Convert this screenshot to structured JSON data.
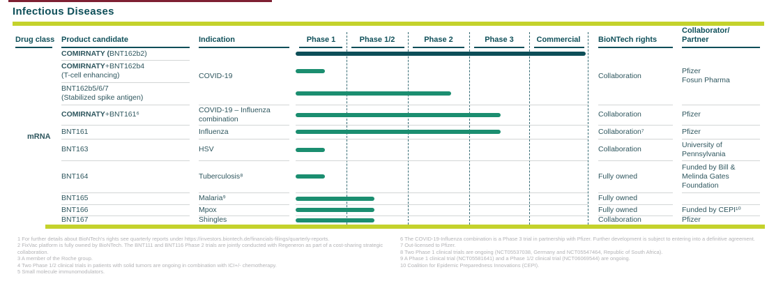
{
  "title": "Infectious Diseases",
  "accent_colors": {
    "petrol": "#0d4e58",
    "green": "#1b8e70",
    "lime": "#c4d22c",
    "footnote_gray": "#b3b3b6"
  },
  "pipeline": {
    "drug_class": "mRNA",
    "columns": [
      "Drug class",
      "Product candidate",
      "Indication",
      "Phase 1",
      "Phase 1/2",
      "Phase 2",
      "Phase 3",
      "Commercial",
      "BioNTech rights",
      "Collaborator/\nPartner"
    ],
    "covid_group": {
      "indication": "COVID-19",
      "rights": "Collaboration",
      "partner": "Pfizer\nFosun Pharma"
    },
    "rows": [
      {
        "product": [
          [
            [
              "COMIRNATY (",
              1
            ],
            [
              "BNT162b2)",
              0
            ]
          ]
        ],
        "indication": "",
        "rights": "",
        "partner": ""
      },
      {
        "product": [
          [
            [
              "COMIRNATY",
              1
            ],
            [
              "+BNT162b4",
              0
            ]
          ],
          [
            [
              "(T-cell enhancing)",
              0
            ]
          ]
        ],
        "indication": "",
        "rights": "",
        "partner": ""
      },
      {
        "product": [
          [
            [
              "BNT162b5/6/7",
              0
            ]
          ],
          [
            [
              "(Stabilized spike antigen)",
              0
            ]
          ]
        ],
        "indication": "",
        "rights": "",
        "partner": ""
      },
      {
        "product": [
          [
            [
              "COMIRNATY",
              1
            ],
            [
              "+BNT161⁶",
              0
            ]
          ]
        ],
        "indication": "COVID-19 – Influenza\ncombination",
        "rights": "Collaboration",
        "partner": "Pfizer"
      },
      {
        "product": [
          [
            [
              "BNT161",
              0
            ]
          ]
        ],
        "indication": "Influenza",
        "rights": "Collaboration⁷",
        "partner": "Pfizer"
      },
      {
        "product": [
          [
            [
              "BNT163",
              0
            ]
          ]
        ],
        "indication": "HSV",
        "rights": "Collaboration",
        "partner": "University of\nPennsylvania"
      },
      {
        "product": [
          [
            [
              "BNT164",
              0
            ]
          ]
        ],
        "indication": "Tuberculosis⁸",
        "rights": "Fully owned",
        "partner": "Funded by Bill &\nMelinda Gates\nFoundation"
      },
      {
        "product": [
          [
            [
              "BNT165",
              0
            ]
          ]
        ],
        "indication": "Malaria⁹",
        "rights": "Fully owned",
        "partner": ""
      },
      {
        "product": [
          [
            [
              "BNT166",
              0
            ]
          ]
        ],
        "indication": "Mpox",
        "rights": "Fully owned",
        "partner": "Funded by CEPI¹⁰"
      },
      {
        "product": [
          [
            [
              "BNT167",
              0
            ]
          ]
        ],
        "indication": "Shingles",
        "rights": "Collaboration",
        "partner": "Pfizer"
      }
    ]
  },
  "chart_data": {
    "type": "gantt",
    "title": "Infectious Diseases",
    "phase_scale": [
      "Phase 1",
      "Phase 1/2",
      "Phase 2",
      "Phase 3",
      "Commercial"
    ],
    "progress_units_note": "end_units: 0=start Phase 1, 1=end Phase 1, 2=end Phase 1/2, 3=end Phase 2, 4=end Phase 3, 5=end Commercial",
    "bars": [
      {
        "candidate": "COMIRNATY (BNT162b2)",
        "indication": "COVID-19",
        "end_units": 4.96,
        "color": "#0d4e58"
      },
      {
        "candidate": "COMIRNATY+BNT162b4 (T-cell enhancing)",
        "indication": "COVID-19",
        "end_units": 0.58,
        "color": "#1b8e70"
      },
      {
        "candidate": "BNT162b5/6/7 (Stabilized spike antigen)",
        "indication": "COVID-19",
        "end_units": 2.7,
        "color": "#1b8e70"
      },
      {
        "candidate": "COMIRNATY+BNT161",
        "indication": "COVID-19 – Influenza combination",
        "end_units": 3.52,
        "color": "#1b8e70"
      },
      {
        "candidate": "BNT161",
        "indication": "Influenza",
        "end_units": 3.52,
        "color": "#1b8e70"
      },
      {
        "candidate": "BNT163",
        "indication": "HSV",
        "end_units": 0.58,
        "color": "#1b8e70"
      },
      {
        "candidate": "BNT164",
        "indication": "Tuberculosis",
        "end_units": 0.58,
        "color": "#1b8e70"
      },
      {
        "candidate": "BNT165",
        "indication": "Malaria",
        "end_units": 1.45,
        "color": "#1b8e70"
      },
      {
        "candidate": "BNT166",
        "indication": "Mpox",
        "end_units": 1.45,
        "color": "#1b8e70"
      },
      {
        "candidate": "BNT167",
        "indication": "Shingles",
        "end_units": 1.45,
        "color": "#1b8e70"
      }
    ]
  },
  "footnotes": {
    "left": [
      "1 For further details about BioNTech's rights see quarterly reports under https://investors.biontech.de/financials-filings/quarterly-reports.",
      "2 FixVac platform is fully owned by BioNTech. The BNT111 and BNT116 Phase 2 trials are jointly conducted with Regeneron as part of a cost-sharing strategic collaboration.",
      "3 A member of the Roche group.",
      "4 Two Phase 1/2 clinical trials in patients with solid tumors are ongoing in combination with ICI+/- chemotherapy.",
      "5 Small molecule immunomodulators."
    ],
    "right": [
      "6 The COVID-19-Influenza combination is a Phase 3 trial in partnership with Pfizer. Further development is subject to entering into a definitive agreement.",
      "7 Out-licensed to Pfizer.",
      "8 Two Phase 1 clinical trials are ongoing (NCT05537038, Germany and NCT05547464, Republic of South Africa).",
      "9 A Phase 1 clinical trial (NCT05581641) and a Phase 1/2 clinical trial (NCT06069544) are ongoing.",
      "10 Coalition for Epidemic Preparedness Innovations (CEPI)."
    ]
  }
}
